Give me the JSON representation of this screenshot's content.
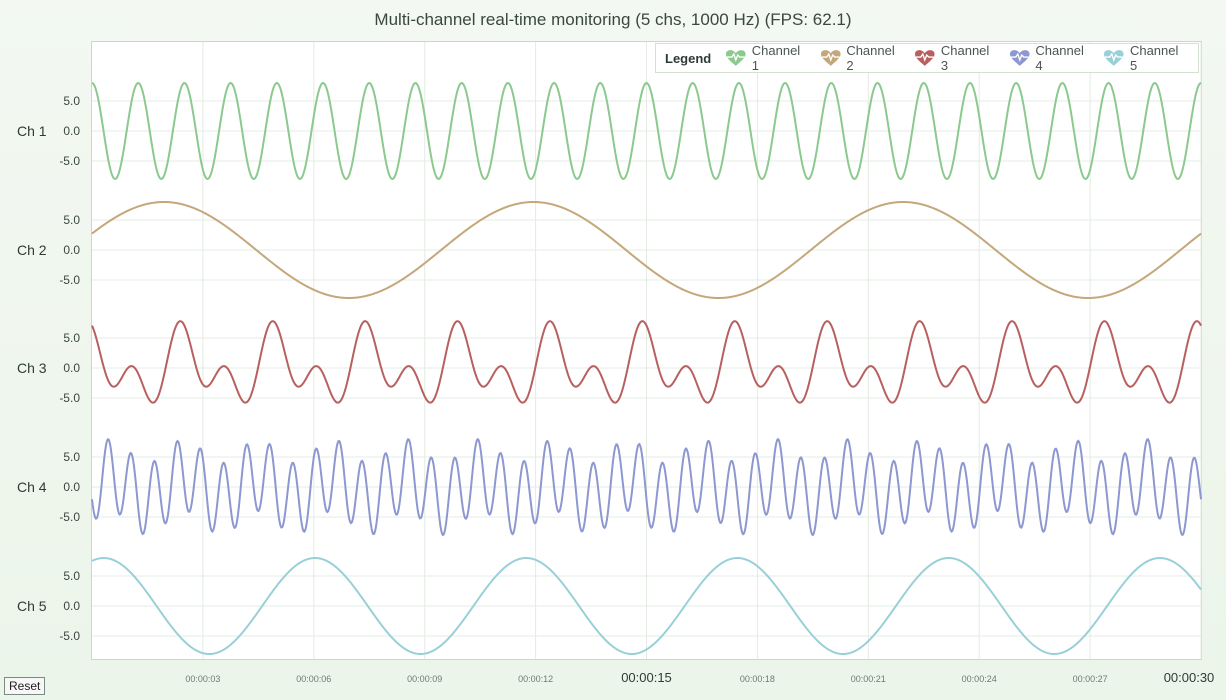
{
  "title": "Multi-channel real-time monitoring (5 chs, 1000 Hz) (FPS: 62.1)",
  "reset_label": "Reset",
  "legend": {
    "title": "Legend",
    "items": [
      {
        "label": "Channel 1",
        "color": "#8cc98f",
        "icon": "heartbeat-icon"
      },
      {
        "label": "Channel 2",
        "color": "#c4a77a",
        "icon": "heartbeat-icon"
      },
      {
        "label": "Channel 3",
        "color": "#b86060",
        "icon": "heartbeat-icon"
      },
      {
        "label": "Channel 4",
        "color": "#8d97d0",
        "icon": "heartbeat-icon"
      },
      {
        "label": "Channel 5",
        "color": "#99d0d8",
        "icon": "heartbeat-icon"
      }
    ]
  },
  "chart_data": {
    "type": "line",
    "title": "Multi-channel real-time monitoring (5 chs, 1000 Hz) (FPS: 62.1)",
    "x_unit": "time (hh:mm:ss)",
    "xlim": [
      "00:00:00",
      "00:00:30"
    ],
    "x_ticks": [
      {
        "label": "00:00:03",
        "major": false
      },
      {
        "label": "00:00:06",
        "major": false
      },
      {
        "label": "00:00:09",
        "major": false
      },
      {
        "label": "00:00:12",
        "major": false
      },
      {
        "label": "00:00:15",
        "major": true
      },
      {
        "label": "00:00:18",
        "major": false
      },
      {
        "label": "00:00:21",
        "major": false
      },
      {
        "label": "00:00:24",
        "major": false
      },
      {
        "label": "00:00:27",
        "major": false
      },
      {
        "label": "00:00:30",
        "major": true
      }
    ],
    "y_ticks": [
      "5.0",
      "0.0",
      "-5.0"
    ],
    "ylim": [
      -8,
      8
    ],
    "grid": true,
    "legend_position": "top-right",
    "series": [
      {
        "name": "Channel 1",
        "axis_label": "Ch 1",
        "color": "#8cc98f",
        "components": [
          {
            "amp": 8,
            "freq_hz": 0.8,
            "phase_deg": 90
          }
        ]
      },
      {
        "name": "Channel 2",
        "axis_label": "Ch 2",
        "color": "#c4a77a",
        "components": [
          {
            "amp": 8,
            "freq_hz": 0.1,
            "phase_deg": 20
          }
        ]
      },
      {
        "name": "Channel 3",
        "axis_label": "Ch 3",
        "color": "#b86060",
        "components": [
          {
            "amp": 4,
            "freq_hz": 0.8,
            "phase_deg": 130
          },
          {
            "amp": 4,
            "freq_hz": 0.4,
            "phase_deg": 90
          }
        ]
      },
      {
        "name": "Channel 4",
        "axis_label": "Ch 4",
        "color": "#8d97d0",
        "components": [
          {
            "amp": 6,
            "freq_hz": 1.6,
            "phase_deg": 200
          },
          {
            "amp": 2,
            "freq_hz": 0.5,
            "phase_deg": 0
          }
        ]
      },
      {
        "name": "Channel 5",
        "axis_label": "Ch 5",
        "color": "#99d0d8",
        "components": [
          {
            "amp": 8,
            "freq_hz": 0.175,
            "phase_deg": 70
          }
        ]
      }
    ]
  }
}
